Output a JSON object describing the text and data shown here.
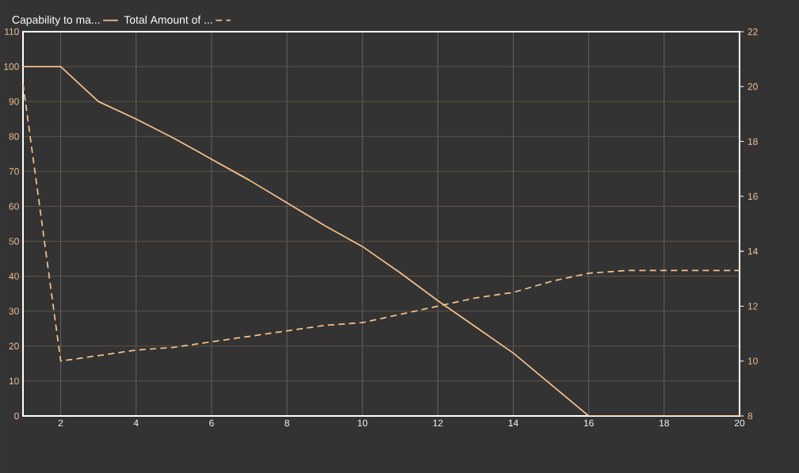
{
  "chart_data": {
    "type": "line",
    "x": [
      1,
      2,
      3,
      4,
      5,
      6,
      7,
      8,
      9,
      10,
      11,
      12,
      13,
      14,
      15,
      16,
      17,
      18,
      19,
      20
    ],
    "series": [
      {
        "name": "Capability to ma...",
        "color": "#f5c08a",
        "line_style": "solid",
        "axis": "y",
        "values": [
          100,
          100,
          90,
          85,
          79.5,
          73.5,
          67.5,
          61,
          54.5,
          48.5,
          41,
          33,
          25.5,
          18,
          9,
          0,
          0,
          0,
          0,
          0
        ]
      },
      {
        "name": "Total Amount of ...",
        "color": "#f5c08a",
        "line_style": "dashed",
        "axis": "y2",
        "values": [
          20.1,
          10,
          10.2,
          10.4,
          10.5,
          10.7,
          10.9,
          11.1,
          11.3,
          11.4,
          11.7,
          12,
          12.3,
          12.5,
          12.9,
          13.2,
          13.3,
          13.3,
          13.3,
          13.3
        ]
      }
    ],
    "xlim": [
      1,
      20
    ],
    "xticks": [
      2,
      4,
      6,
      8,
      10,
      12,
      14,
      16,
      18,
      20
    ],
    "ylim": [
      0,
      110
    ],
    "yticks": [
      0,
      10,
      20,
      30,
      40,
      50,
      60,
      70,
      80,
      90,
      100,
      110
    ],
    "y2lim": [
      8,
      22
    ],
    "y2ticks": [
      8,
      10,
      12,
      14,
      16,
      18,
      20,
      22
    ],
    "grid": true,
    "legend": "top left",
    "marker": "none"
  }
}
